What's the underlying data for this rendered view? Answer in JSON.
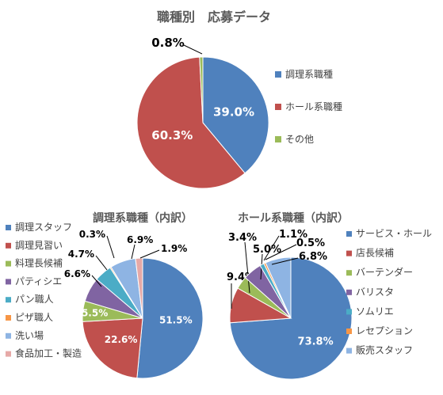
{
  "chart_data": [
    {
      "type": "pie",
      "title": "職種別　応募データ",
      "start": "12 o'clock, clockwise",
      "legend_position": "right",
      "series": [
        {
          "name": "調理系職種",
          "value": 39.0,
          "label": "39.0%",
          "color": "#4f81bd",
          "label_style": "inside"
        },
        {
          "name": "ホール系職種",
          "value": 60.3,
          "label": "60.3%",
          "color": "#c0504d",
          "label_style": "inside"
        },
        {
          "name": "その他",
          "value": 0.8,
          "label": "0.8%",
          "color": "#9bbb59",
          "label_style": "outside"
        }
      ]
    },
    {
      "type": "pie",
      "title": "調理系職種（内訳）",
      "start": "12 o'clock, clockwise",
      "legend_position": "left",
      "series": [
        {
          "name": "調理スタッフ",
          "value": 51.5,
          "label": "51.5%",
          "color": "#4f81bd",
          "label_style": "inside"
        },
        {
          "name": "調理見習い",
          "value": 22.6,
          "label": "22.6%",
          "color": "#c0504d",
          "label_style": "inside"
        },
        {
          "name": "料理長候補",
          "value": 5.5,
          "label": "5.5%",
          "color": "#9bbb59",
          "label_style": "inside"
        },
        {
          "name": "パティシエ",
          "value": 6.6,
          "label": "6.6%",
          "color": "#8064a2",
          "label_style": "outside"
        },
        {
          "name": "パン職人",
          "value": 4.7,
          "label": "4.7%",
          "color": "#4bacc6",
          "label_style": "outside"
        },
        {
          "name": "ピザ職人",
          "value": 0.3,
          "label": "0.3%",
          "color": "#f79646",
          "label_style": "outside"
        },
        {
          "name": "洗い場",
          "value": 6.9,
          "label": "6.9%",
          "color": "#8eb4e3",
          "label_style": "outside"
        },
        {
          "name": "食品加工・製造",
          "value": 1.9,
          "label": "1.9%",
          "color": "#e6a9a7",
          "label_style": "outside"
        }
      ]
    },
    {
      "type": "pie",
      "title": "ホール系職種（内訳）",
      "start": "12 o'clock, clockwise",
      "legend_position": "right",
      "series": [
        {
          "name": "サービス・ホール",
          "value": 73.8,
          "label": "73.8%",
          "color": "#4f81bd",
          "label_style": "inside"
        },
        {
          "name": "店長候補",
          "value": 9.4,
          "label": "9.4%",
          "color": "#c0504d",
          "label_style": "outside"
        },
        {
          "name": "バーテンダー",
          "value": 3.4,
          "label": "3.4%",
          "color": "#9bbb59",
          "label_style": "outside"
        },
        {
          "name": "バリスタ",
          "value": 5.0,
          "label": "5.0%",
          "color": "#8064a2",
          "label_style": "outside"
        },
        {
          "name": "ソムリエ",
          "value": 1.1,
          "label": "1.1%",
          "color": "#4bacc6",
          "label_style": "outside"
        },
        {
          "name": "レセプション",
          "value": 0.5,
          "label": "0.5%",
          "color": "#f79646",
          "label_style": "outside"
        },
        {
          "name": "販売スタッフ",
          "value": 6.8,
          "label": "6.8%",
          "color": "#8eb4e3",
          "label_style": "outside"
        }
      ]
    }
  ]
}
